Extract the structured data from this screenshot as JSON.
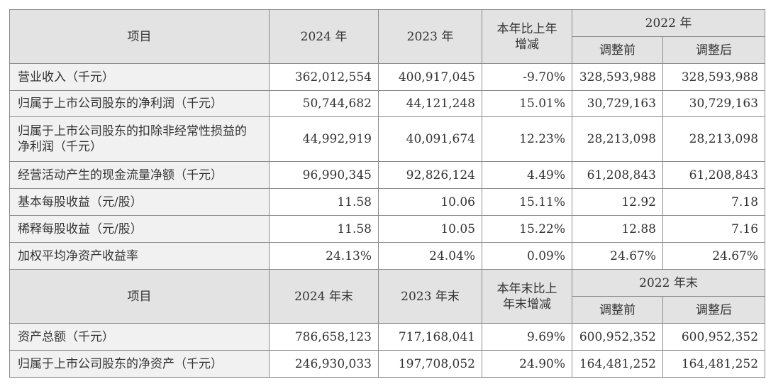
{
  "header1": {
    "item": "项目",
    "y2024": "2024 年",
    "y2023": "2023 年",
    "change": "本年比上年增减",
    "y2022": "2022 年",
    "before": "调整前",
    "after": "调整后"
  },
  "rows1": [
    {
      "label": "营业收入（千元）",
      "v2024": "362,012,554",
      "v2023": "400,917,045",
      "change": "-9.70%",
      "before": "328,593,988",
      "after": "328,593,988"
    },
    {
      "label": "归属于上市公司股东的净利润（千元）",
      "v2024": "50,744,682",
      "v2023": "44,121,248",
      "change": "15.01%",
      "before": "30,729,163",
      "after": "30,729,163"
    },
    {
      "label": "归属于上市公司股东的扣除非经常性损益的净利润（千元）",
      "v2024": "44,992,919",
      "v2023": "40,091,674",
      "change": "12.23%",
      "before": "28,213,098",
      "after": "28,213,098"
    },
    {
      "label": "经营活动产生的现金流量净额（千元）",
      "v2024": "96,990,345",
      "v2023": "92,826,124",
      "change": "4.49%",
      "before": "61,208,843",
      "after": "61,208,843"
    },
    {
      "label": "基本每股收益（元/股）",
      "v2024": "11.58",
      "v2023": "10.06",
      "change": "15.11%",
      "before": "12.92",
      "after": "7.18"
    },
    {
      "label": "稀释每股收益（元/股）",
      "v2024": "11.58",
      "v2023": "10.05",
      "change": "15.22%",
      "before": "12.88",
      "after": "7.16"
    },
    {
      "label": "加权平均净资产收益率",
      "v2024": "24.13%",
      "v2023": "24.04%",
      "change": "0.09%",
      "before": "24.67%",
      "after": "24.67%"
    }
  ],
  "header2": {
    "item": "项目",
    "y2024": "2024 年末",
    "y2023": "2023 年末",
    "change": "本年末比上年末增减",
    "y2022": "2022 年末",
    "before": "调整前",
    "after": "调整后"
  },
  "rows2": [
    {
      "label": "资产总额（千元）",
      "v2024": "786,658,123",
      "v2023": "717,168,041",
      "change": "9.69%",
      "before": "600,952,352",
      "after": "600,952,352"
    },
    {
      "label": "归属于上市公司股东的净资产（千元）",
      "v2024": "246,930,033",
      "v2023": "197,708,052",
      "change": "24.90%",
      "before": "164,481,252",
      "after": "164,481,252"
    }
  ]
}
